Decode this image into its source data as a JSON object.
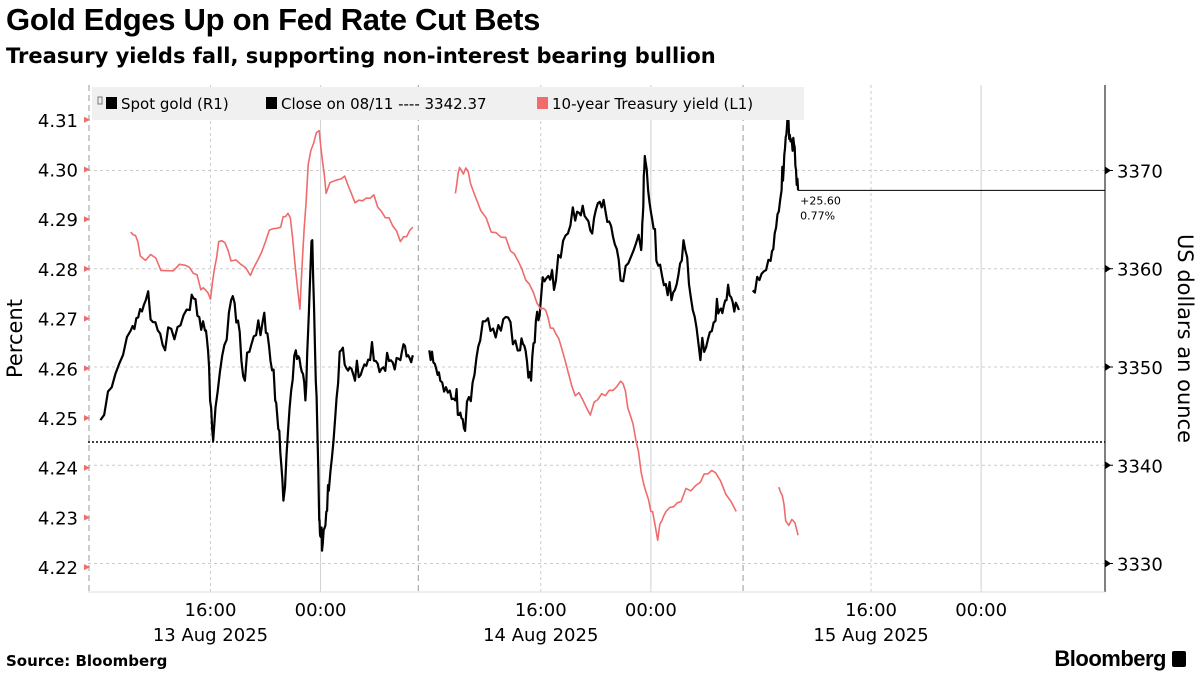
{
  "header": {
    "title": "Gold Edges Up on Fed Rate Cut Bets",
    "subtitle": "Treasury yields fall, supporting non-interest bearing bullion"
  },
  "footer": {
    "source": "Source: Bloomberg",
    "logo": "Bloomberg"
  },
  "chart_data": {
    "type": "line",
    "title": "Gold Edges Up on Fed Rate Cut Bets",
    "x_unit": "hours since 13 Aug 2025 00:00",
    "xlim": [
      7.1,
      81
    ],
    "x_ticks": [
      {
        "h": 16,
        "time": "16:00",
        "date": "13 Aug 2025"
      },
      {
        "h": 24,
        "time": "00:00",
        "date": ""
      },
      {
        "h": 40,
        "time": "16:00",
        "date": "14 Aug 2025"
      },
      {
        "h": 48,
        "time": "00:00",
        "date": ""
      },
      {
        "h": 64,
        "time": "16:00",
        "date": "15 Aug 2025"
      },
      {
        "h": 72,
        "time": "00:00",
        "date": ""
      }
    ],
    "session_breaks": [
      7.1,
      31.1,
      54.7
    ],
    "left_axis": {
      "label": "Percent",
      "ylim": [
        4.215,
        4.317
      ],
      "ticks": [
        "4.22",
        "4.23",
        "4.24",
        "4.25",
        "4.26",
        "4.27",
        "4.28",
        "4.29",
        "4.30",
        "4.31"
      ]
    },
    "right_axis": {
      "label": "US dollars an ounce",
      "ylim": [
        3327.1,
        3378.7
      ],
      "ticks": [
        "3330",
        "3340",
        "3350",
        "3360",
        "3370"
      ]
    },
    "legend": {
      "position": "top",
      "items": [
        "Spot gold (R1)",
        "Close on 08/11 ---- 3342.37",
        "10-year Treasury yield (L1)"
      ]
    },
    "colors": {
      "gold": "#000000",
      "treasury": "#f06b6b",
      "close": "#000000"
    },
    "reference": {
      "close_value": 3342.37,
      "last_value": 3367.97
    },
    "annotation": {
      "change": "+25.60",
      "pct": "0.77%"
    },
    "series": [
      {
        "name": "Spot gold (R1)",
        "axis": "right",
        "segments": [
          [
            [
              8.0,
              3344.6
            ],
            [
              10.2,
              3353.7
            ],
            [
              11.3,
              3356.8
            ],
            [
              12.7,
              3351.7
            ],
            [
              14.5,
              3355.8
            ],
            [
              15.6,
              3353.7
            ],
            [
              16.2,
              3342.5
            ],
            [
              17.5,
              3356.8
            ],
            [
              18.5,
              3348.6
            ],
            [
              19.8,
              3354.7
            ],
            [
              20.7,
              3346.6
            ],
            [
              21.3,
              3336.4
            ],
            [
              22.2,
              3351.7
            ],
            [
              22.9,
              3346.6
            ],
            [
              23.4,
              3362.9
            ],
            [
              23.9,
              3334.4
            ],
            [
              24.1,
              3331.3
            ],
            [
              24.6,
              3337.4
            ],
            [
              25.5,
              3351.7
            ],
            [
              26.5,
              3348.6
            ],
            [
              27.6,
              3350.7
            ],
            [
              28.7,
              3349.6
            ],
            [
              29.8,
              3350.7
            ],
            [
              30.7,
              3351.2
            ]
          ],
          [
            [
              31.9,
              3351.7
            ],
            [
              32.7,
              3348.6
            ],
            [
              33.8,
              3346.6
            ],
            [
              34.5,
              3343.5
            ],
            [
              35.6,
              3352.7
            ],
            [
              37.1,
              3353.7
            ],
            [
              38.5,
              3351.7
            ],
            [
              39.3,
              3348.6
            ],
            [
              40.0,
              3356.8
            ],
            [
              41.1,
              3358.8
            ],
            [
              42.5,
              3364.9
            ],
            [
              43.6,
              3363.9
            ],
            [
              44.7,
              3365.9
            ],
            [
              45.8,
              3358.8
            ],
            [
              47.3,
              3361.9
            ],
            [
              47.6,
              3371.0
            ],
            [
              48.4,
              3360.8
            ],
            [
              49.5,
              3356.8
            ],
            [
              50.5,
              3361.9
            ],
            [
              51.6,
              3350.7
            ],
            [
              52.7,
              3354.7
            ],
            [
              53.5,
              3356.8
            ],
            [
              54.4,
              3355.8
            ]
          ],
          [
            [
              55.4,
              3357.8
            ],
            [
              56.7,
              3360.8
            ],
            [
              57.5,
              3368.0
            ],
            [
              57.9,
              3374.6
            ],
            [
              58.3,
              3372.0
            ],
            [
              58.7,
              3367.97
            ]
          ]
        ]
      },
      {
        "name": "10-year Treasury yield (L1)",
        "axis": "left",
        "segments": [
          [
            [
              10.2,
              4.2874
            ],
            [
              10.9,
              4.2826
            ],
            [
              12.4,
              4.2797
            ],
            [
              14.2,
              4.2807
            ],
            [
              15.3,
              4.2758
            ],
            [
              16.0,
              4.2739
            ],
            [
              16.6,
              4.2855
            ],
            [
              17.5,
              4.2816
            ],
            [
              18.9,
              4.2787
            ],
            [
              20.0,
              4.2855
            ],
            [
              21.1,
              4.2884
            ],
            [
              21.8,
              4.2903
            ],
            [
              22.5,
              4.2719
            ],
            [
              23.1,
              4.301
            ],
            [
              23.9,
              4.3078
            ],
            [
              24.4,
              4.2952
            ],
            [
              25.5,
              4.2981
            ],
            [
              26.5,
              4.2933
            ],
            [
              27.6,
              4.2942
            ],
            [
              28.7,
              4.2903
            ],
            [
              29.8,
              4.2855
            ],
            [
              30.7,
              4.2884
            ]
          ],
          [
            [
              33.8,
              4.2952
            ],
            [
              34.2,
              4.3
            ],
            [
              34.9,
              4.2971
            ],
            [
              36.4,
              4.2874
            ],
            [
              37.8,
              4.2836
            ],
            [
              38.9,
              4.2778
            ],
            [
              40.0,
              4.2719
            ],
            [
              40.7,
              4.2681
            ],
            [
              41.5,
              4.2642
            ],
            [
              42.5,
              4.2545
            ],
            [
              43.6,
              4.2506
            ],
            [
              44.7,
              4.2545
            ],
            [
              45.8,
              4.2574
            ],
            [
              46.5,
              4.2506
            ],
            [
              47.3,
              4.239
            ],
            [
              48.0,
              4.2312
            ],
            [
              48.5,
              4.2254
            ],
            [
              49.1,
              4.2312
            ],
            [
              50.2,
              4.2332
            ],
            [
              51.6,
              4.2371
            ],
            [
              52.7,
              4.239
            ],
            [
              54.2,
              4.2312
            ]
          ],
          [
            [
              57.3,
              4.2361
            ],
            [
              57.8,
              4.2293
            ],
            [
              58.7,
              4.2264
            ]
          ]
        ]
      }
    ]
  }
}
